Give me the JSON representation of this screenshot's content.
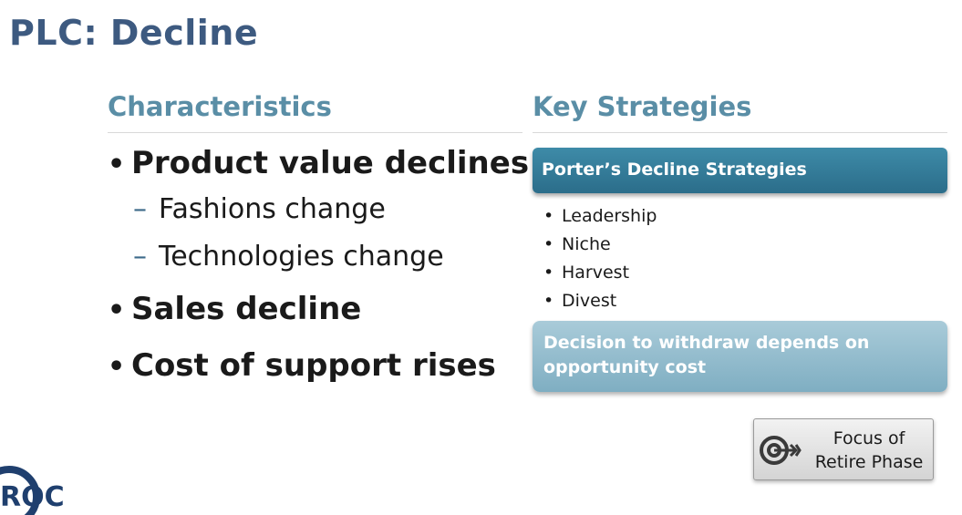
{
  "slide": {
    "title": "PLC: Decline",
    "characteristics": {
      "heading": "Characteristics",
      "bullets": [
        {
          "text": "Product value declines",
          "subs": [
            "Fashions change",
            "Technologies change"
          ]
        },
        {
          "text": "Sales decline",
          "subs": []
        },
        {
          "text": "Cost of support rises",
          "subs": []
        }
      ]
    },
    "strategies": {
      "heading": "Key Strategies",
      "box_title": "Porter’s Decline Strategies",
      "items": [
        "Leadership",
        "Niche",
        "Harvest",
        "Divest"
      ],
      "decision_note": "Decision to withdraw depends on opportunity cost"
    },
    "focus_button": {
      "line1": "Focus of",
      "line2": "Retire Phase",
      "icon": "target-arrow-icon"
    },
    "logo": {
      "text": "ROC",
      "icon": "logo-circle-icon",
      "color": "#1f3f6e"
    }
  },
  "colors": {
    "title": "#3d5a80",
    "heading": "#5a8ea6",
    "porter_box": "#2b6d8a",
    "decision_box": "#7faec2"
  }
}
